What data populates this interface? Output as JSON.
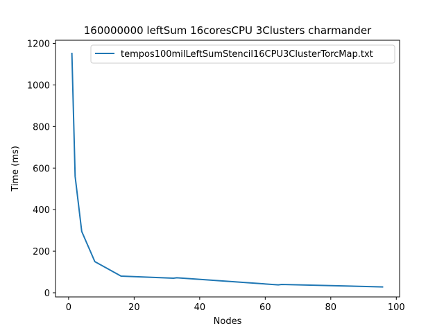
{
  "chart_data": {
    "type": "line",
    "title": "160000000 leftSum 16coresCPU 3Clusters charmander",
    "xlabel": "Nodes",
    "ylabel": "Time (ms)",
    "xlim": [
      -4,
      101
    ],
    "ylim": [
      -20,
      1215
    ],
    "xticks": [
      0,
      20,
      40,
      60,
      80,
      100
    ],
    "yticks": [
      0,
      200,
      400,
      600,
      800,
      1000,
      1200
    ],
    "grid": false,
    "legend_position": "top-right",
    "series": [
      {
        "name": "tempos100milLeftSumStencil16CPU3ClusterTorcMap.txt",
        "color": "#1f77b4",
        "x": [
          1,
          2,
          4,
          8,
          16,
          32,
          33,
          64,
          65,
          96
        ],
        "y": [
          1155,
          560,
          295,
          150,
          80,
          70,
          72,
          38,
          40,
          28
        ]
      }
    ]
  }
}
